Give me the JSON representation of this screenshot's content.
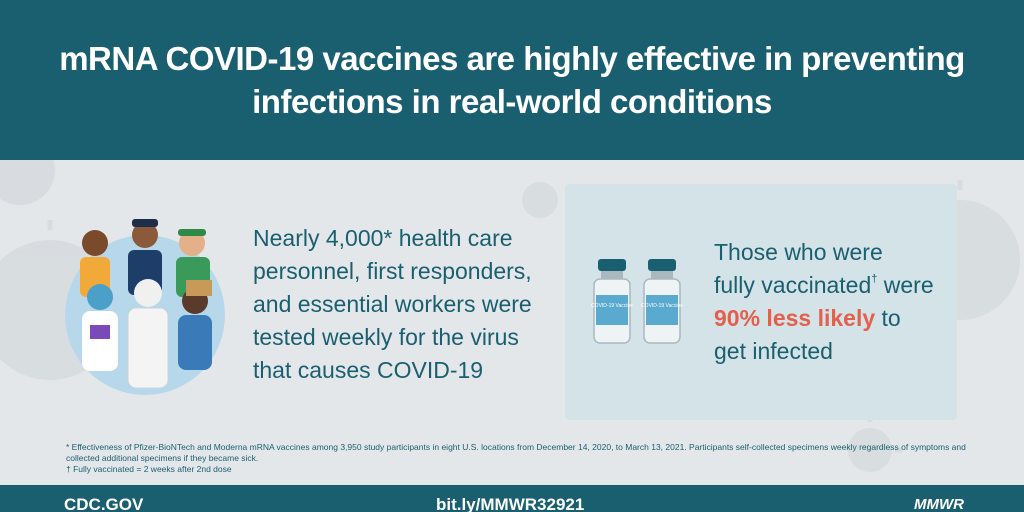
{
  "header": {
    "title": "mRNA COVID-19 vaccines are highly effective in preventing infections in real-world conditions"
  },
  "left": {
    "text": "Nearly 4,000* health care personnel, first responders, and essential workers were tested weekly for the virus that causes COVID-19"
  },
  "right": {
    "line1": "Those who were",
    "line2_a": "fully vaccinated",
    "line2_mark": "†",
    "line2_b": " were",
    "highlight": "90% less likely",
    "line3_b": " to",
    "line4": "get infected",
    "vial_label_1": "COVID-19 Vaccine",
    "vial_label_2": "COVID-19 Vaccine"
  },
  "footnotes": {
    "line1": "* Effectiveness of Pfizer-BioNTech and Moderna mRNA vaccines among 3,950 study participants in eight U.S. locations from December 14, 2020, to March 13, 2021. Participants self-collected specimens weekly regardless of symptoms and collected additional specimens if they became sick.",
    "line2": "† Fully vaccinated = 2 weeks after 2nd dose"
  },
  "footer": {
    "left": "CDC.GOV",
    "middle": "bit.ly/MMWR32921",
    "right": "MMWR"
  },
  "colors": {
    "teal": "#1a5f6f",
    "accent": "#e2604c",
    "background": "#e4e7ea",
    "panel": "#d4e3e8"
  },
  "icons": [
    "virus-icon",
    "essential-workers-illustration",
    "vaccine-vials-icon"
  ]
}
